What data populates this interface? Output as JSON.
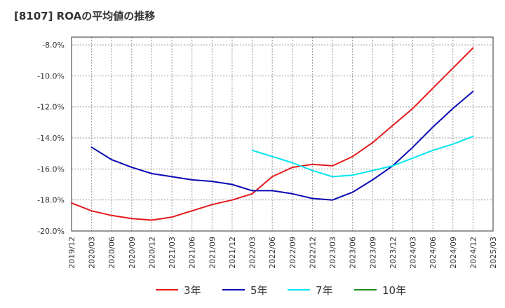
{
  "title": "[8107]  ROAの平均値の推移",
  "chart_data": {
    "type": "line",
    "x": [
      "2019/12",
      "2020/03",
      "2020/06",
      "2020/09",
      "2020/12",
      "2021/03",
      "2021/06",
      "2021/09",
      "2021/12",
      "2022/03",
      "2022/06",
      "2022/09",
      "2022/12",
      "2023/03",
      "2023/06",
      "2023/09",
      "2023/12",
      "2024/03",
      "2024/06",
      "2024/09",
      "2024/12",
      "2025/03"
    ],
    "ylim": [
      -20.0,
      -7.5
    ],
    "yticks": [
      -20.0,
      -18.0,
      -16.0,
      -14.0,
      -12.0,
      -10.0,
      -8.0
    ],
    "ytick_labels": [
      "-20.0%",
      "-18.0%",
      "-16.0%",
      "-14.0%",
      "-12.0%",
      "-10.0%",
      "-8.0%"
    ],
    "grid": true,
    "legend_position": "bottom",
    "series": [
      {
        "name": "3年",
        "color": "#e41a1c",
        "values": [
          -18.2,
          -18.7,
          -19.0,
          -19.2,
          -19.3,
          -19.1,
          -18.7,
          -18.3,
          -18.0,
          -17.6,
          -16.5,
          -15.9,
          -15.7,
          -15.8,
          -15.2,
          -14.3,
          -13.2,
          -12.1,
          -10.8,
          -9.5,
          -8.2,
          null
        ]
      },
      {
        "name": "5年",
        "color": "#0a0ab4",
        "values": [
          null,
          -14.6,
          -15.4,
          -15.9,
          -16.3,
          -16.5,
          -16.7,
          -16.8,
          -17.0,
          -17.4,
          -17.4,
          -17.6,
          -17.9,
          -18.0,
          -17.5,
          -16.7,
          -15.8,
          -14.6,
          -13.3,
          -12.1,
          -11.0,
          null
        ]
      },
      {
        "name": "7年",
        "color": "#00e5ee",
        "values": [
          null,
          null,
          null,
          null,
          null,
          null,
          null,
          null,
          null,
          -14.8,
          -15.2,
          -15.6,
          -16.1,
          -16.5,
          -16.4,
          -16.1,
          -15.8,
          -15.3,
          -14.8,
          -14.4,
          -13.9,
          null
        ]
      },
      {
        "name": "10年",
        "color": "#228b22",
        "values": [
          null,
          null,
          null,
          null,
          null,
          null,
          null,
          null,
          null,
          null,
          null,
          null,
          null,
          null,
          null,
          null,
          null,
          null,
          null,
          null,
          null,
          null
        ]
      }
    ]
  }
}
